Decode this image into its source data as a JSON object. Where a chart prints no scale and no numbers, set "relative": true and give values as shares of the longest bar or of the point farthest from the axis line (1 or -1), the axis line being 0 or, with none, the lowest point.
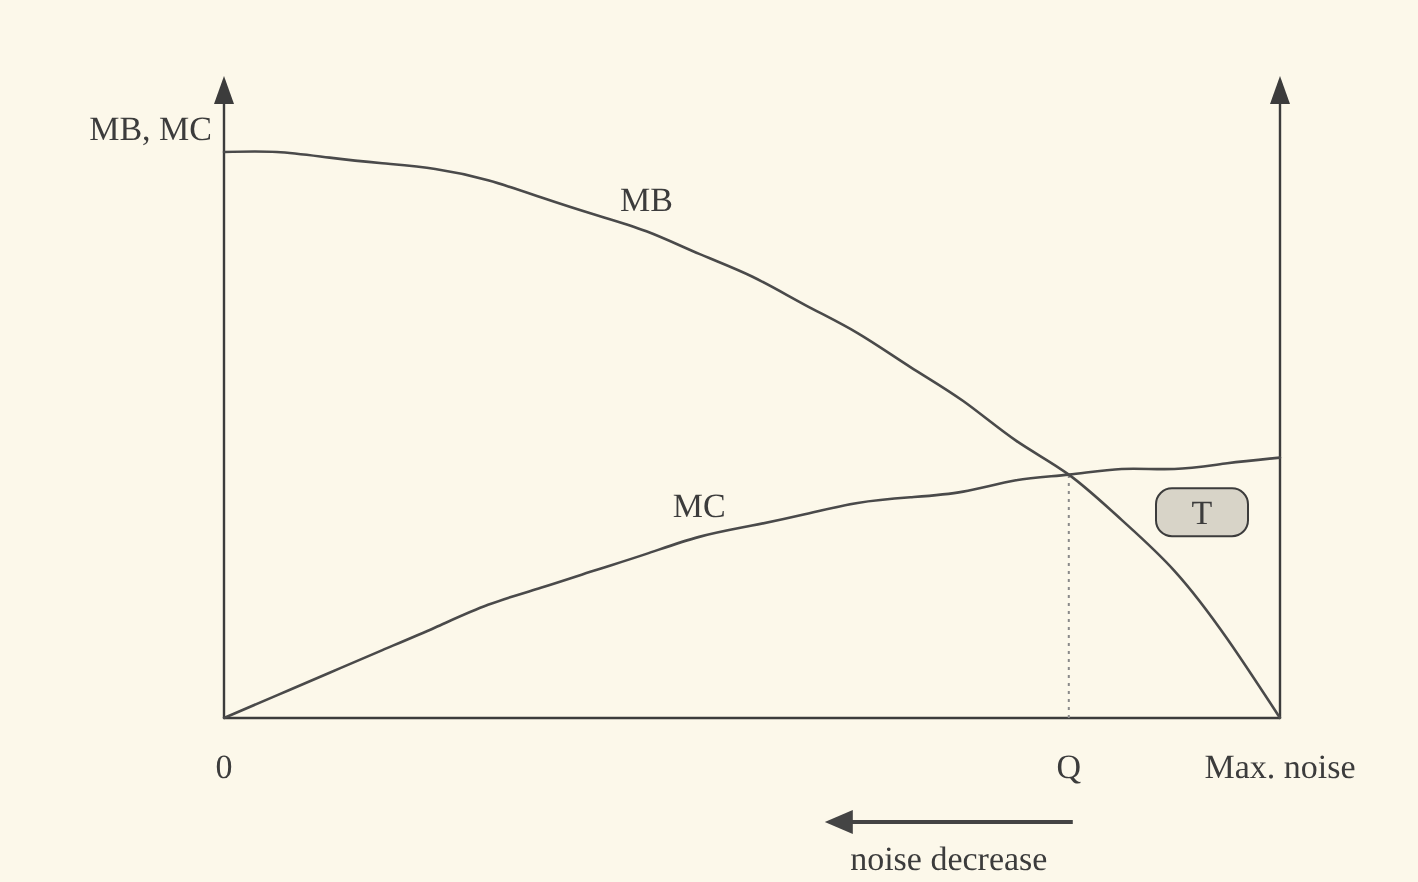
{
  "chart_data": {
    "type": "line",
    "ylabel": "MB, MC",
    "relative": true,
    "tick_labels": "x",
    "marker": "none",
    "line_style": "solid",
    "categories": [
      "0",
      null,
      null,
      null,
      null,
      null,
      null,
      null,
      null,
      null,
      null,
      null,
      null,
      null,
      null,
      null,
      "Q",
      null,
      null,
      null,
      "Max. noise"
    ],
    "series": [
      {
        "name": "MB",
        "color": "#4a4a4a",
        "values": [
          1.0,
          1.0,
          0.99,
          0.98,
          0.97,
          0.95,
          0.92,
          0.89,
          0.86,
          0.82,
          0.78,
          0.73,
          0.68,
          0.62,
          0.56,
          0.49,
          0.43,
          0.35,
          0.26,
          0.14,
          0.0
        ]
      },
      {
        "name": "MC",
        "color": "#4a4a4a",
        "values": [
          0.0,
          0.04,
          0.08,
          0.12,
          0.16,
          0.2,
          0.23,
          0.26,
          0.29,
          0.32,
          0.34,
          0.36,
          0.38,
          0.39,
          0.4,
          0.42,
          0.43,
          0.44,
          0.44,
          0.45,
          0.46
        ]
      }
    ],
    "ref_lines": [
      {
        "axis": "x",
        "value": "Q",
        "line_style": "dotted",
        "color": "#8a8a8a"
      }
    ],
    "annotations": [
      "T",
      "noise decrease"
    ]
  }
}
